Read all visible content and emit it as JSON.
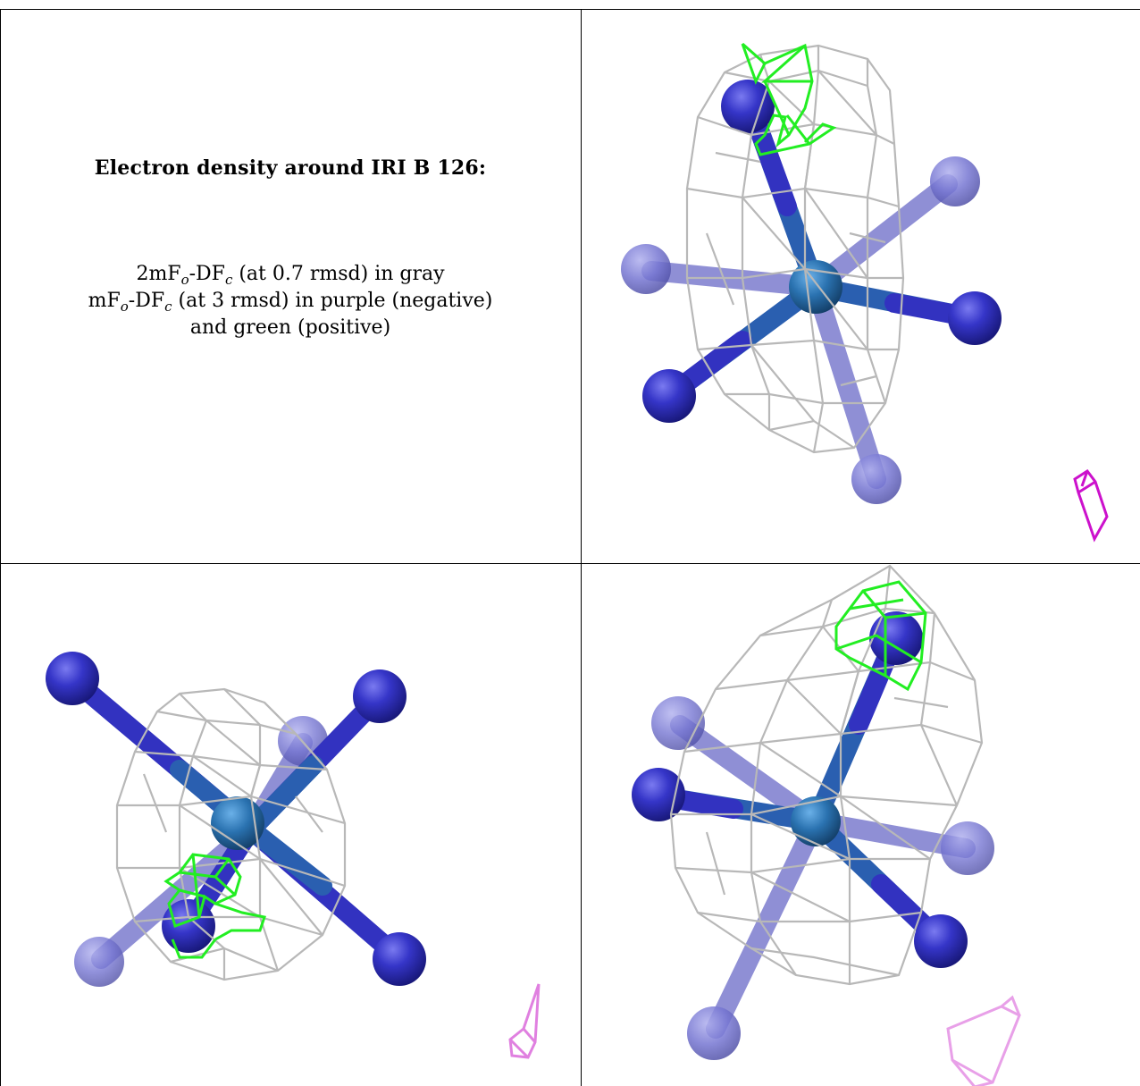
{
  "caption": {
    "title": "Electron density around IRI B 126:",
    "line1": {
      "prefix": "2mF",
      "sub1": "o",
      "mid": "-DF",
      "sub2": "c",
      "suffix": " (at 0.7 rmsd) in gray"
    },
    "line2": {
      "prefix": "mF",
      "sub1": "o",
      "mid": "-DF",
      "sub2": "c",
      "suffix": " (at 3 rmsd) in purple (negative)"
    },
    "line3": "and green (positive)"
  },
  "colors": {
    "mesh_gray": "#b8b8b8",
    "positive_green": "#22ee22",
    "negative_purple": "#cc11cc",
    "negative_purple_light": "#e080e0",
    "ligand_dark_blue": "#3030b8",
    "ligand_faded_blue": "#7070cc",
    "metal_center": "#2a72b0"
  },
  "panels": [
    {
      "id": "top-right",
      "view": "front"
    },
    {
      "id": "bottom-left",
      "view": "rotated"
    },
    {
      "id": "bottom-right",
      "view": "side"
    }
  ]
}
